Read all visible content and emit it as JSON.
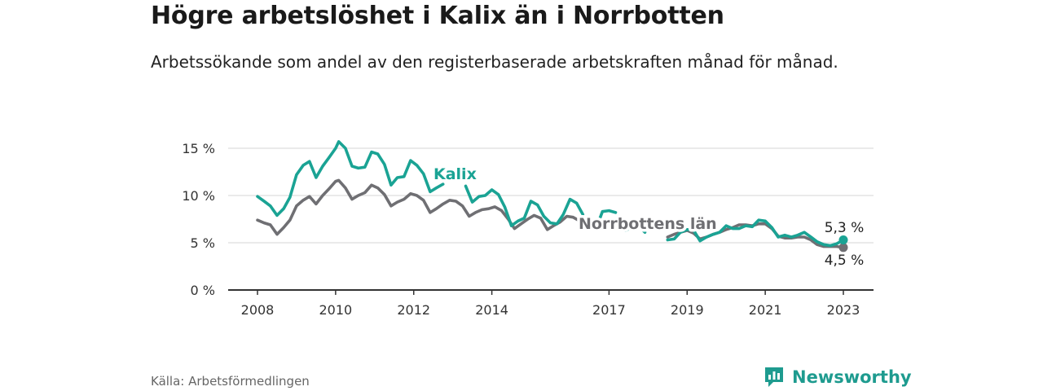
{
  "title": "Högre arbetslöshet i Kalix än i Norrbotten",
  "subtitle": "Arbetssökande som andel av den registerbaserade arbetskraften månad för månad.",
  "source": "Källa: Arbetsförmedlingen",
  "brand": "Newsworthy",
  "colors": {
    "kalix": "#1aa394",
    "norrbotten": "#6f6f73",
    "grid": "#dddddd",
    "axis": "#333333"
  },
  "chart_data": {
    "type": "line",
    "ylabel": "",
    "xlabel": "",
    "ylim": [
      0,
      16
    ],
    "y_ticks": [
      0,
      5,
      10,
      15
    ],
    "y_tick_labels": [
      "0 %",
      "5 %",
      "10 %",
      "15 %"
    ],
    "x_range": [
      2008.0,
      2023.2
    ],
    "x_ticks": [
      2008,
      2010,
      2012,
      2014,
      2017,
      2019,
      2021,
      2023
    ],
    "x_tick_labels": [
      "2008",
      "2010",
      "2012",
      "2014",
      "2017",
      "2019",
      "2021",
      "2023"
    ],
    "series": [
      {
        "name": "Kalix",
        "label": "Kalix",
        "end_label": "5,3 %",
        "points": [
          [
            2008.0,
            9.9
          ],
          [
            2008.17,
            9.4
          ],
          [
            2008.33,
            8.9
          ],
          [
            2008.5,
            7.9
          ],
          [
            2008.67,
            8.6
          ],
          [
            2008.83,
            9.8
          ],
          [
            2009.0,
            12.2
          ],
          [
            2009.17,
            13.2
          ],
          [
            2009.33,
            13.6
          ],
          [
            2009.5,
            11.9
          ],
          [
            2009.67,
            13.1
          ],
          [
            2009.83,
            14.0
          ],
          [
            2010.0,
            15.0
          ],
          [
            2010.08,
            15.7
          ],
          [
            2010.25,
            15.0
          ],
          [
            2010.42,
            13.1
          ],
          [
            2010.58,
            12.9
          ],
          [
            2010.75,
            13.0
          ],
          [
            2010.92,
            14.6
          ],
          [
            2011.08,
            14.4
          ],
          [
            2011.25,
            13.3
          ],
          [
            2011.42,
            11.1
          ],
          [
            2011.58,
            11.9
          ],
          [
            2011.75,
            12.0
          ],
          [
            2011.92,
            13.7
          ],
          [
            2012.08,
            13.2
          ],
          [
            2012.25,
            12.3
          ],
          [
            2012.42,
            10.4
          ],
          [
            2012.58,
            10.8
          ],
          [
            2012.75,
            11.2
          ],
          [
            2012.92,
            null
          ],
          [
            2013.33,
            11.0
          ],
          [
            2013.5,
            9.3
          ],
          [
            2013.67,
            9.9
          ],
          [
            2013.83,
            10.0
          ],
          [
            2014.0,
            10.6
          ],
          [
            2014.17,
            10.1
          ],
          [
            2014.33,
            8.8
          ],
          [
            2014.5,
            6.8
          ],
          [
            2014.67,
            7.3
          ],
          [
            2014.83,
            7.6
          ],
          [
            2015.0,
            9.4
          ],
          [
            2015.17,
            9.0
          ],
          [
            2015.33,
            7.8
          ],
          [
            2015.5,
            7.1
          ],
          [
            2015.67,
            7.0
          ],
          [
            2015.83,
            8.0
          ],
          [
            2016.0,
            9.6
          ],
          [
            2016.17,
            9.2
          ],
          [
            2016.33,
            8.0
          ],
          [
            2016.42,
            null
          ],
          [
            2016.58,
            7.2
          ],
          [
            2016.75,
            7.4
          ],
          [
            2016.83,
            8.3
          ],
          [
            2017.0,
            8.4
          ],
          [
            2017.17,
            8.2
          ],
          [
            2017.25,
            null
          ],
          [
            2017.42,
            6.3
          ],
          [
            2017.58,
            6.6
          ],
          [
            2017.75,
            6.8
          ],
          [
            2017.92,
            6.1
          ],
          [
            2018.0,
            null
          ],
          [
            2018.5,
            5.3
          ],
          [
            2018.67,
            5.4
          ],
          [
            2018.83,
            6.1
          ],
          [
            2019.0,
            6.4
          ],
          [
            2019.17,
            6.3
          ],
          [
            2019.33,
            5.2
          ],
          [
            2019.5,
            5.6
          ],
          [
            2019.67,
            5.9
          ],
          [
            2019.83,
            6.1
          ],
          [
            2020.0,
            6.8
          ],
          [
            2020.17,
            6.5
          ],
          [
            2020.33,
            6.5
          ],
          [
            2020.5,
            6.8
          ],
          [
            2020.67,
            6.7
          ],
          [
            2020.83,
            7.4
          ],
          [
            2021.0,
            7.3
          ],
          [
            2021.17,
            6.6
          ],
          [
            2021.33,
            5.6
          ],
          [
            2021.5,
            5.8
          ],
          [
            2021.67,
            5.6
          ],
          [
            2021.83,
            5.8
          ],
          [
            2022.0,
            6.1
          ],
          [
            2022.17,
            5.6
          ],
          [
            2022.33,
            5.1
          ],
          [
            2022.5,
            4.8
          ],
          [
            2022.67,
            4.7
          ],
          [
            2022.83,
            4.9
          ],
          [
            2023.0,
            5.3
          ]
        ]
      },
      {
        "name": "Norrbottens län",
        "label": "Norrbottens län",
        "end_label": "4,5 %",
        "points": [
          [
            2008.0,
            7.4
          ],
          [
            2008.17,
            7.1
          ],
          [
            2008.33,
            6.9
          ],
          [
            2008.5,
            5.9
          ],
          [
            2008.67,
            6.6
          ],
          [
            2008.83,
            7.4
          ],
          [
            2009.0,
            8.9
          ],
          [
            2009.17,
            9.5
          ],
          [
            2009.33,
            9.9
          ],
          [
            2009.5,
            9.1
          ],
          [
            2009.67,
            10.0
          ],
          [
            2009.83,
            10.7
          ],
          [
            2010.0,
            11.5
          ],
          [
            2010.08,
            11.6
          ],
          [
            2010.25,
            10.8
          ],
          [
            2010.42,
            9.6
          ],
          [
            2010.58,
            10.0
          ],
          [
            2010.75,
            10.3
          ],
          [
            2010.92,
            11.1
          ],
          [
            2011.08,
            10.8
          ],
          [
            2011.25,
            10.1
          ],
          [
            2011.42,
            8.9
          ],
          [
            2011.58,
            9.3
          ],
          [
            2011.75,
            9.6
          ],
          [
            2011.92,
            10.2
          ],
          [
            2012.08,
            10.0
          ],
          [
            2012.25,
            9.5
          ],
          [
            2012.42,
            8.2
          ],
          [
            2012.58,
            8.6
          ],
          [
            2012.75,
            9.1
          ],
          [
            2012.92,
            9.5
          ],
          [
            2013.08,
            9.4
          ],
          [
            2013.25,
            8.9
          ],
          [
            2013.42,
            7.8
          ],
          [
            2013.58,
            8.2
          ],
          [
            2013.75,
            8.5
          ],
          [
            2013.92,
            8.6
          ],
          [
            2014.08,
            8.8
          ],
          [
            2014.25,
            8.4
          ],
          [
            2014.42,
            7.5
          ],
          [
            2014.58,
            6.5
          ],
          [
            2014.75,
            7.0
          ],
          [
            2014.92,
            7.5
          ],
          [
            2015.08,
            7.9
          ],
          [
            2015.25,
            7.6
          ],
          [
            2015.42,
            6.4
          ],
          [
            2015.58,
            6.8
          ],
          [
            2015.75,
            7.2
          ],
          [
            2015.92,
            7.8
          ],
          [
            2016.08,
            7.7
          ],
          [
            2016.25,
            7.3
          ],
          [
            2016.33,
            null
          ],
          [
            2016.58,
            6.2
          ],
          [
            2016.67,
            null
          ],
          [
            2018.5,
            5.6
          ],
          [
            2018.67,
            5.9
          ],
          [
            2018.83,
            6.1
          ],
          [
            2019.0,
            6.3
          ],
          [
            2019.17,
            6.0
          ],
          [
            2019.33,
            5.4
          ],
          [
            2019.5,
            5.6
          ],
          [
            2019.67,
            5.9
          ],
          [
            2019.83,
            6.1
          ],
          [
            2020.0,
            6.4
          ],
          [
            2020.17,
            6.6
          ],
          [
            2020.33,
            6.9
          ],
          [
            2020.5,
            6.9
          ],
          [
            2020.67,
            6.8
          ],
          [
            2020.83,
            7.0
          ],
          [
            2021.0,
            7.0
          ],
          [
            2021.17,
            6.5
          ],
          [
            2021.33,
            5.7
          ],
          [
            2021.5,
            5.5
          ],
          [
            2021.67,
            5.5
          ],
          [
            2021.83,
            5.6
          ],
          [
            2022.0,
            5.6
          ],
          [
            2022.17,
            5.3
          ],
          [
            2022.33,
            4.8
          ],
          [
            2022.5,
            4.6
          ],
          [
            2022.67,
            4.6
          ],
          [
            2022.83,
            4.6
          ],
          [
            2023.0,
            4.5
          ]
        ]
      }
    ]
  }
}
